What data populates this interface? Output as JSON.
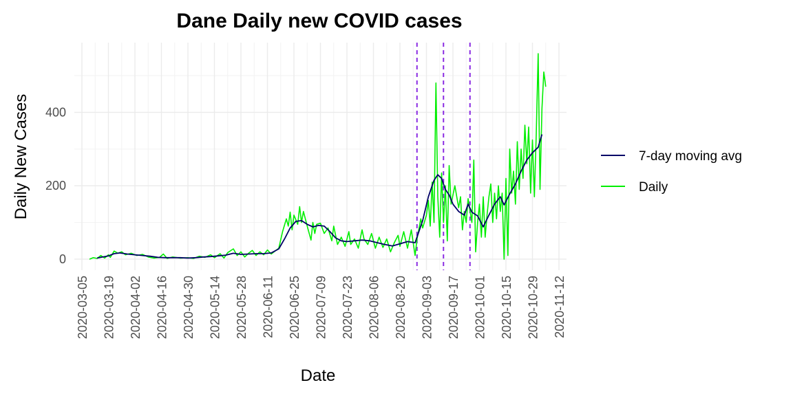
{
  "chart_data": {
    "type": "line",
    "title": "Dane Daily new COVID cases",
    "xlabel": "Date",
    "ylabel": "Daily New Cases",
    "x_range": [
      "2020-03-01",
      "2020-11-16"
    ],
    "ylim": [
      -30,
      590
    ],
    "y_ticks": [
      0,
      200,
      400
    ],
    "x_ticks": [
      "2020-03-05",
      "2020-03-19",
      "2020-04-02",
      "2020-04-16",
      "2020-04-30",
      "2020-05-14",
      "2020-05-28",
      "2020-06-11",
      "2020-06-25",
      "2020-07-09",
      "2020-07-23",
      "2020-08-06",
      "2020-08-20",
      "2020-09-03",
      "2020-09-17",
      "2020-10-01",
      "2020-10-15",
      "2020-10-29",
      "2020-11-12"
    ],
    "grid": true,
    "legend_position": "right",
    "vlines": [
      "2020-08-29",
      "2020-09-12",
      "2020-09-26"
    ],
    "vline_color": "#8A2BE2",
    "series": [
      {
        "name": "7-day moving avg",
        "color": "#000066",
        "points": [
          [
            "2020-03-13",
            3
          ],
          [
            "2020-03-16",
            6
          ],
          [
            "2020-03-19",
            9
          ],
          [
            "2020-03-22",
            15
          ],
          [
            "2020-03-25",
            17
          ],
          [
            "2020-03-29",
            14
          ],
          [
            "2020-04-02",
            12
          ],
          [
            "2020-04-06",
            10
          ],
          [
            "2020-04-10",
            8
          ],
          [
            "2020-04-14",
            5
          ],
          [
            "2020-04-18",
            4
          ],
          [
            "2020-04-22",
            4
          ],
          [
            "2020-04-26",
            4
          ],
          [
            "2020-04-30",
            3
          ],
          [
            "2020-05-04",
            4
          ],
          [
            "2020-05-08",
            6
          ],
          [
            "2020-05-12",
            7
          ],
          [
            "2020-05-16",
            9
          ],
          [
            "2020-05-20",
            11
          ],
          [
            "2020-05-24",
            16
          ],
          [
            "2020-05-28",
            13
          ],
          [
            "2020-06-01",
            14
          ],
          [
            "2020-06-05",
            15
          ],
          [
            "2020-06-09",
            15
          ],
          [
            "2020-06-13",
            17
          ],
          [
            "2020-06-17",
            28
          ],
          [
            "2020-06-20",
            55
          ],
          [
            "2020-06-23",
            85
          ],
          [
            "2020-06-26",
            103
          ],
          [
            "2020-06-29",
            105
          ],
          [
            "2020-07-02",
            95
          ],
          [
            "2020-07-05",
            88
          ],
          [
            "2020-07-08",
            92
          ],
          [
            "2020-07-11",
            90
          ],
          [
            "2020-07-14",
            75
          ],
          [
            "2020-07-17",
            58
          ],
          [
            "2020-07-20",
            50
          ],
          [
            "2020-07-23",
            48
          ],
          [
            "2020-07-27",
            50
          ],
          [
            "2020-07-31",
            52
          ],
          [
            "2020-08-04",
            50
          ],
          [
            "2020-08-08",
            45
          ],
          [
            "2020-08-12",
            40
          ],
          [
            "2020-08-16",
            36
          ],
          [
            "2020-08-20",
            42
          ],
          [
            "2020-08-24",
            48
          ],
          [
            "2020-08-28",
            45
          ],
          [
            "2020-08-30",
            75
          ],
          [
            "2020-09-01",
            105
          ],
          [
            "2020-09-04",
            170
          ],
          [
            "2020-09-07",
            215
          ],
          [
            "2020-09-09",
            230
          ],
          [
            "2020-09-11",
            220
          ],
          [
            "2020-09-13",
            190
          ],
          [
            "2020-09-15",
            175
          ],
          [
            "2020-09-17",
            150
          ],
          [
            "2020-09-20",
            130
          ],
          [
            "2020-09-23",
            120
          ],
          [
            "2020-09-25",
            150
          ],
          [
            "2020-09-27",
            128
          ],
          [
            "2020-09-30",
            118
          ],
          [
            "2020-10-03",
            88
          ],
          [
            "2020-10-06",
            120
          ],
          [
            "2020-10-09",
            150
          ],
          [
            "2020-10-12",
            170
          ],
          [
            "2020-10-14",
            148
          ],
          [
            "2020-10-17",
            178
          ],
          [
            "2020-10-20",
            205
          ],
          [
            "2020-10-23",
            240
          ],
          [
            "2020-10-26",
            270
          ],
          [
            "2020-10-29",
            290
          ],
          [
            "2020-11-01",
            305
          ],
          [
            "2020-11-03",
            340
          ]
        ]
      },
      {
        "name": "Daily",
        "color": "#00EE00",
        "points": [
          [
            "2020-03-09",
            0
          ],
          [
            "2020-03-11",
            4
          ],
          [
            "2020-03-13",
            2
          ],
          [
            "2020-03-15",
            10
          ],
          [
            "2020-03-17",
            3
          ],
          [
            "2020-03-19",
            12
          ],
          [
            "2020-03-20",
            5
          ],
          [
            "2020-03-22",
            22
          ],
          [
            "2020-03-24",
            16
          ],
          [
            "2020-03-26",
            20
          ],
          [
            "2020-03-28",
            12
          ],
          [
            "2020-03-31",
            16
          ],
          [
            "2020-04-03",
            10
          ],
          [
            "2020-04-06",
            13
          ],
          [
            "2020-04-09",
            6
          ],
          [
            "2020-04-12",
            3
          ],
          [
            "2020-04-15",
            5
          ],
          [
            "2020-04-17",
            14
          ],
          [
            "2020-04-19",
            2
          ],
          [
            "2020-04-22",
            6
          ],
          [
            "2020-04-26",
            3
          ],
          [
            "2020-04-30",
            4
          ],
          [
            "2020-05-03",
            2
          ],
          [
            "2020-05-06",
            8
          ],
          [
            "2020-05-09",
            5
          ],
          [
            "2020-05-12",
            12
          ],
          [
            "2020-05-14",
            4
          ],
          [
            "2020-05-17",
            15
          ],
          [
            "2020-05-19",
            3
          ],
          [
            "2020-05-21",
            18
          ],
          [
            "2020-05-24",
            28
          ],
          [
            "2020-05-26",
            10
          ],
          [
            "2020-05-28",
            20
          ],
          [
            "2020-05-30",
            6
          ],
          [
            "2020-06-01",
            16
          ],
          [
            "2020-06-03",
            24
          ],
          [
            "2020-06-05",
            10
          ],
          [
            "2020-06-07",
            20
          ],
          [
            "2020-06-09",
            12
          ],
          [
            "2020-06-11",
            25
          ],
          [
            "2020-06-13",
            14
          ],
          [
            "2020-06-15",
            22
          ],
          [
            "2020-06-17",
            30
          ],
          [
            "2020-06-19",
            75
          ],
          [
            "2020-06-21",
            110
          ],
          [
            "2020-06-22",
            90
          ],
          [
            "2020-06-23",
            128
          ],
          [
            "2020-06-24",
            80
          ],
          [
            "2020-06-25",
            120
          ],
          [
            "2020-06-27",
            95
          ],
          [
            "2020-06-28",
            143
          ],
          [
            "2020-06-29",
            100
          ],
          [
            "2020-06-30",
            130
          ],
          [
            "2020-07-02",
            90
          ],
          [
            "2020-07-04",
            52
          ],
          [
            "2020-07-05",
            100
          ],
          [
            "2020-07-06",
            70
          ],
          [
            "2020-07-07",
            95
          ],
          [
            "2020-07-09",
            98
          ],
          [
            "2020-07-11",
            70
          ],
          [
            "2020-07-13",
            85
          ],
          [
            "2020-07-15",
            50
          ],
          [
            "2020-07-16",
            90
          ],
          [
            "2020-07-18",
            40
          ],
          [
            "2020-07-20",
            60
          ],
          [
            "2020-07-22",
            35
          ],
          [
            "2020-07-24",
            75
          ],
          [
            "2020-07-25",
            40
          ],
          [
            "2020-07-27",
            55
          ],
          [
            "2020-07-29",
            30
          ],
          [
            "2020-07-31",
            80
          ],
          [
            "2020-08-01",
            55
          ],
          [
            "2020-08-03",
            40
          ],
          [
            "2020-08-05",
            70
          ],
          [
            "2020-08-07",
            30
          ],
          [
            "2020-08-09",
            60
          ],
          [
            "2020-08-11",
            32
          ],
          [
            "2020-08-13",
            55
          ],
          [
            "2020-08-15",
            20
          ],
          [
            "2020-08-17",
            45
          ],
          [
            "2020-08-19",
            65
          ],
          [
            "2020-08-20",
            35
          ],
          [
            "2020-08-22",
            75
          ],
          [
            "2020-08-24",
            30
          ],
          [
            "2020-08-26",
            80
          ],
          [
            "2020-08-28",
            10
          ],
          [
            "2020-08-29",
            55
          ],
          [
            "2020-08-31",
            110
          ],
          [
            "2020-09-01",
            85
          ],
          [
            "2020-09-03",
            120
          ],
          [
            "2020-09-04",
            160
          ],
          [
            "2020-09-05",
            90
          ],
          [
            "2020-09-06",
            210
          ],
          [
            "2020-09-07",
            100
          ],
          [
            "2020-09-08",
            480
          ],
          [
            "2020-09-09",
            170
          ],
          [
            "2020-09-10",
            60
          ],
          [
            "2020-09-11",
            235
          ],
          [
            "2020-09-12",
            100
          ],
          [
            "2020-09-13",
            200
          ],
          [
            "2020-09-14",
            50
          ],
          [
            "2020-09-15",
            255
          ],
          [
            "2020-09-16",
            150
          ],
          [
            "2020-09-18",
            200
          ],
          [
            "2020-09-20",
            140
          ],
          [
            "2020-09-21",
            170
          ],
          [
            "2020-09-22",
            80
          ],
          [
            "2020-09-23",
            130
          ],
          [
            "2020-09-24",
            100
          ],
          [
            "2020-09-25",
            165
          ],
          [
            "2020-09-27",
            100
          ],
          [
            "2020-09-28",
            270
          ],
          [
            "2020-09-29",
            20
          ],
          [
            "2020-09-30",
            100
          ],
          [
            "2020-10-01",
            150
          ],
          [
            "2020-10-02",
            60
          ],
          [
            "2020-10-03",
            170
          ],
          [
            "2020-10-04",
            60
          ],
          [
            "2020-10-05",
            120
          ],
          [
            "2020-10-06",
            170
          ],
          [
            "2020-10-07",
            205
          ],
          [
            "2020-10-08",
            100
          ],
          [
            "2020-10-09",
            180
          ],
          [
            "2020-10-10",
            110
          ],
          [
            "2020-10-11",
            200
          ],
          [
            "2020-10-12",
            130
          ],
          [
            "2020-10-13",
            180
          ],
          [
            "2020-10-14",
            0
          ],
          [
            "2020-10-15",
            220
          ],
          [
            "2020-10-16",
            10
          ],
          [
            "2020-10-17",
            300
          ],
          [
            "2020-10-18",
            180
          ],
          [
            "2020-10-19",
            240
          ],
          [
            "2020-10-20",
            150
          ],
          [
            "2020-10-21",
            320
          ],
          [
            "2020-10-22",
            190
          ],
          [
            "2020-10-23",
            300
          ],
          [
            "2020-10-24",
            220
          ],
          [
            "2020-10-25",
            365
          ],
          [
            "2020-10-26",
            260
          ],
          [
            "2020-10-27",
            360
          ],
          [
            "2020-10-28",
            180
          ],
          [
            "2020-10-29",
            325
          ],
          [
            "2020-10-30",
            170
          ],
          [
            "2020-10-31",
            340
          ],
          [
            "2020-11-01",
            560
          ],
          [
            "2020-11-02",
            190
          ],
          [
            "2020-11-03",
            410
          ],
          [
            "2020-11-04",
            510
          ],
          [
            "2020-11-05",
            470
          ]
        ]
      }
    ]
  }
}
